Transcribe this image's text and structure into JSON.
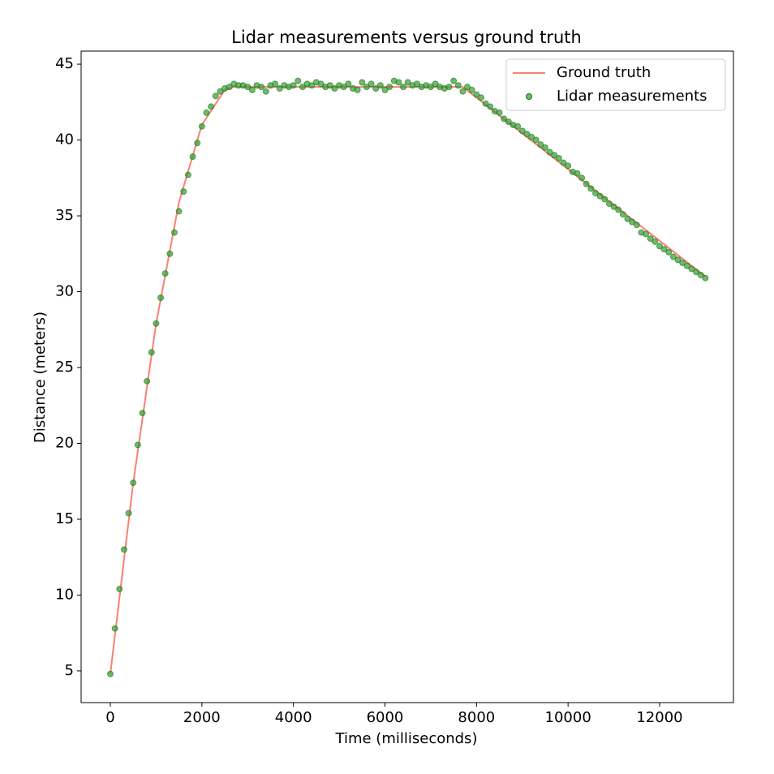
{
  "chart_data": {
    "type": "line_scatter",
    "title": "Lidar measurements versus ground truth",
    "xlabel": "Time (milliseconds)",
    "ylabel": "Distance (meters)",
    "xlim": [
      -638,
      13613
    ],
    "ylim": [
      2.91,
      45.86
    ],
    "xticks": [
      0,
      2000,
      4000,
      6000,
      8000,
      10000,
      12000
    ],
    "yticks": [
      5,
      10,
      15,
      20,
      25,
      30,
      35,
      40,
      45
    ],
    "legend": "upper right",
    "series": [
      {
        "name": "Ground truth",
        "kind": "line",
        "color": "#fa8072",
        "x": [
          0,
          500,
          1000,
          1500,
          2000,
          2500,
          2700,
          7700,
          13000
        ],
        "values": [
          4.8,
          17.4,
          27.9,
          35.9,
          41.0,
          43.3,
          43.5,
          43.5,
          31.0
        ]
      },
      {
        "name": "Lidar measurements",
        "kind": "scatter",
        "color": "#2ca02c",
        "x": [
          0,
          100,
          200,
          300,
          400,
          500,
          600,
          700,
          800,
          900,
          1000,
          1100,
          1200,
          1300,
          1400,
          1500,
          1600,
          1700,
          1800,
          1900,
          2000,
          2100,
          2200,
          2300,
          2400,
          2500,
          2600,
          2700,
          2800,
          2900,
          3000,
          3100,
          3200,
          3300,
          3400,
          3500,
          3600,
          3700,
          3800,
          3900,
          4000,
          4100,
          4200,
          4300,
          4400,
          4500,
          4600,
          4700,
          4800,
          4900,
          5000,
          5100,
          5200,
          5300,
          5400,
          5500,
          5600,
          5700,
          5800,
          5900,
          6000,
          6100,
          6200,
          6300,
          6400,
          6500,
          6600,
          6700,
          6800,
          6900,
          7000,
          7100,
          7200,
          7300,
          7400,
          7500,
          7600,
          7700,
          7800,
          7900,
          8000,
          8100,
          8200,
          8300,
          8400,
          8500,
          8600,
          8700,
          8800,
          8900,
          9000,
          9100,
          9200,
          9300,
          9400,
          9500,
          9600,
          9700,
          9800,
          9900,
          10000,
          10100,
          10200,
          10300,
          10400,
          10500,
          10600,
          10700,
          10800,
          10900,
          11000,
          11100,
          11200,
          11300,
          11400,
          11500,
          11600,
          11700,
          11800,
          11900,
          12000,
          12100,
          12200,
          12300,
          12400,
          12500,
          12600,
          12700,
          12800,
          12900,
          13000
        ],
        "values": [
          4.8,
          7.8,
          10.4,
          13.0,
          15.4,
          17.4,
          19.9,
          22.0,
          24.1,
          26.0,
          27.9,
          29.6,
          31.2,
          32.5,
          33.9,
          35.3,
          36.6,
          37.7,
          38.9,
          39.8,
          40.9,
          41.8,
          42.2,
          42.9,
          43.2,
          43.4,
          43.5,
          43.7,
          43.6,
          43.6,
          43.5,
          43.3,
          43.6,
          43.5,
          43.2,
          43.6,
          43.7,
          43.4,
          43.6,
          43.5,
          43.6,
          43.9,
          43.5,
          43.7,
          43.6,
          43.8,
          43.7,
          43.5,
          43.6,
          43.4,
          43.6,
          43.5,
          43.7,
          43.4,
          43.3,
          43.8,
          43.5,
          43.7,
          43.4,
          43.6,
          43.3,
          43.5,
          43.9,
          43.8,
          43.5,
          43.8,
          43.6,
          43.7,
          43.5,
          43.6,
          43.5,
          43.7,
          43.5,
          43.4,
          43.5,
          43.9,
          43.6,
          43.2,
          43.5,
          43.3,
          43.0,
          42.8,
          42.4,
          42.2,
          41.9,
          41.8,
          41.4,
          41.2,
          41.0,
          40.9,
          40.6,
          40.4,
          40.2,
          40.0,
          39.7,
          39.5,
          39.2,
          39.0,
          38.8,
          38.5,
          38.3,
          37.9,
          37.8,
          37.5,
          37.1,
          36.8,
          36.5,
          36.3,
          36.1,
          35.8,
          35.6,
          35.4,
          35.1,
          34.8,
          34.6,
          34.4,
          33.9,
          33.8,
          33.5,
          33.3,
          33.0,
          32.8,
          32.6,
          32.3,
          32.1,
          31.9,
          31.7,
          31.5,
          31.3,
          31.1,
          30.9
        ]
      }
    ]
  }
}
